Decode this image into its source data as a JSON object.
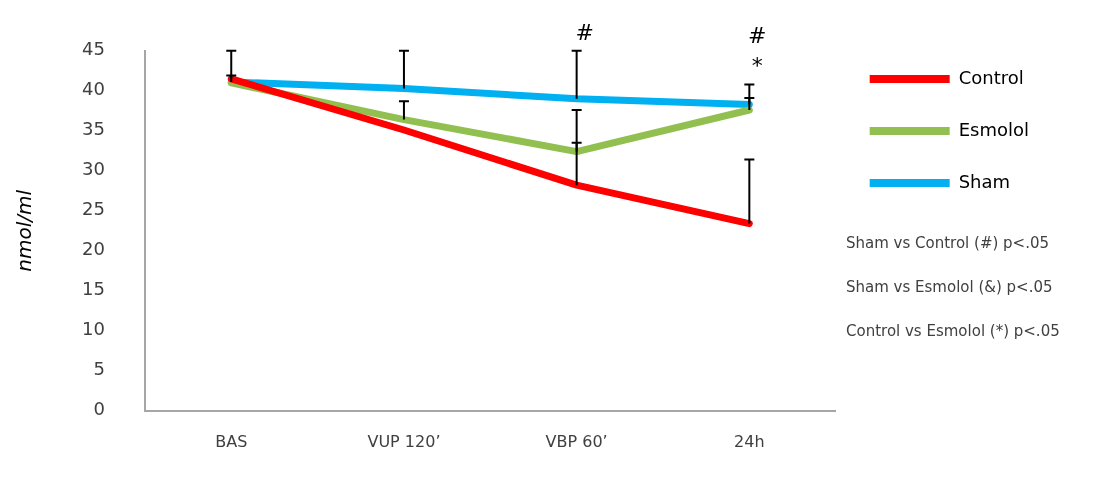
{
  "chart_data": {
    "type": "line",
    "ylabel": "nmol/ml",
    "categories": [
      "BAS",
      "VUP 120’",
      "VBP 60’",
      "24h"
    ],
    "series": [
      {
        "name": "Control",
        "color": "#ff0000",
        "values": [
          41.5,
          35.1,
          28.2,
          23.4
        ],
        "errors": [
          [
            41.5,
            45
          ],
          null,
          [
            28.2,
            33.5
          ],
          [
            23.4,
            31.4
          ]
        ]
      },
      {
        "name": "Esmolol",
        "color": "#92c050",
        "values": [
          41,
          36.4,
          32.4,
          37.6
        ],
        "errors": [
          null,
          [
            36.4,
            38.7
          ],
          [
            32.4,
            37.6
          ],
          [
            37.6,
            39.1
          ]
        ]
      },
      {
        "name": "Sham",
        "color": "#00b0f0",
        "values": [
          41.1,
          40.3,
          39,
          38.3
        ],
        "errors": [
          [
            41.1,
            41.9
          ],
          [
            40.3,
            45
          ],
          [
            39,
            45
          ],
          [
            38.3,
            40.8
          ]
        ]
      }
    ],
    "ylim": [
      0,
      45
    ],
    "yticks": [
      0,
      5,
      10,
      15,
      20,
      25,
      30,
      35,
      40,
      45
    ],
    "grid": false,
    "legend": "top right",
    "marker": "none",
    "line_style": "solid",
    "annotations": [
      {
        "text": "#",
        "x": "VBP 60’",
        "y": 45
      },
      {
        "text": "*",
        "x": "24h",
        "y": 40.8
      },
      {
        "text": "#",
        "x": "24h",
        "y": 40.8
      },
      "Sham vs Control (#) p<.05",
      "Sham vs Esmolol (&) p<.05",
      "Control vs Esmolol (*) p<.05"
    ]
  }
}
